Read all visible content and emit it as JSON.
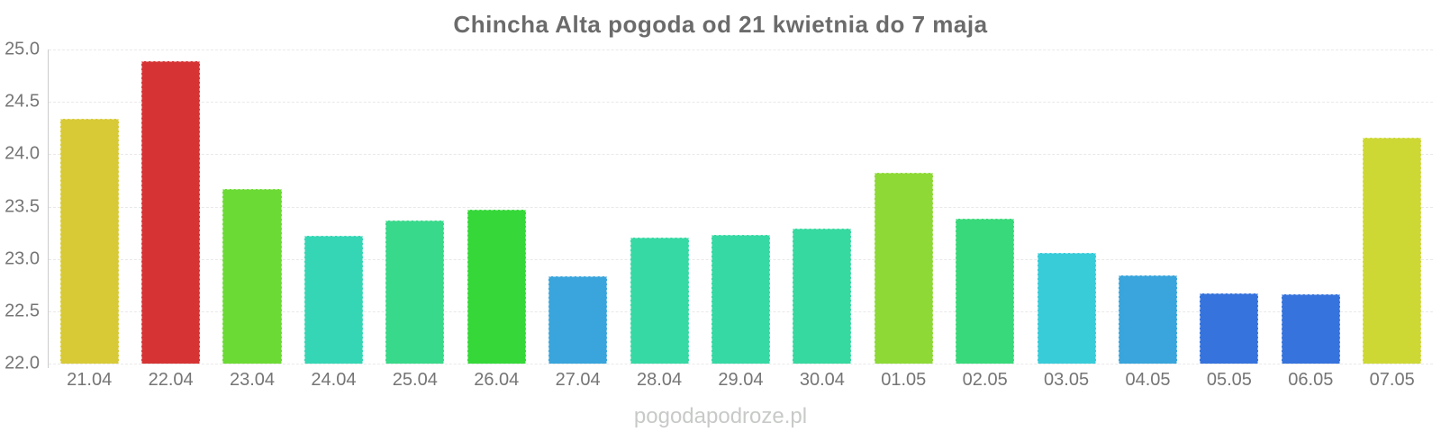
{
  "page": {
    "title": "Chincha Alta pogoda od 21 kwietnia do 7 maja",
    "watermark": "pogodapodroze.pl"
  },
  "chart_data": {
    "type": "bar",
    "title": "Chincha Alta pogoda od 21 kwietnia do 7 maja",
    "xlabel": "",
    "ylabel": "",
    "ylim": [
      22.0,
      25.0
    ],
    "ytick_step": 0.5,
    "yticks": [
      "25.0",
      "24.5",
      "24.0",
      "23.5",
      "23.0",
      "22.5",
      "22.0"
    ],
    "grid": "horizontal-dashed",
    "legend": "none",
    "categories": [
      "21.04",
      "22.04",
      "23.04",
      "24.04",
      "25.04",
      "26.04",
      "27.04",
      "28.04",
      "29.04",
      "30.04",
      "01.05",
      "02.05",
      "03.05",
      "04.05",
      "05.05",
      "06.05",
      "07.05"
    ],
    "values": [
      24.34,
      24.89,
      23.67,
      23.22,
      23.37,
      23.47,
      22.83,
      23.2,
      23.23,
      23.29,
      23.82,
      23.38,
      23.06,
      22.84,
      22.67,
      22.66,
      24.16
    ],
    "bar_colors": [
      "#d8ca36",
      "#d63434",
      "#6cda35",
      "#35d6b5",
      "#38d98a",
      "#35d838",
      "#39a5dc",
      "#36d9a4",
      "#36d9a4",
      "#36d9a0",
      "#8ed936",
      "#38d97a",
      "#38ccd9",
      "#39a5dc",
      "#3673dc",
      "#3673dc",
      "#cdd835"
    ]
  },
  "colors": {
    "title_text": "#6b6b6b",
    "axis_label_text": "#757575",
    "axis_line": "#cccccc",
    "gridline": "#e9e9e9",
    "watermark_text": "#c7cac7",
    "background": "#ffffff"
  }
}
